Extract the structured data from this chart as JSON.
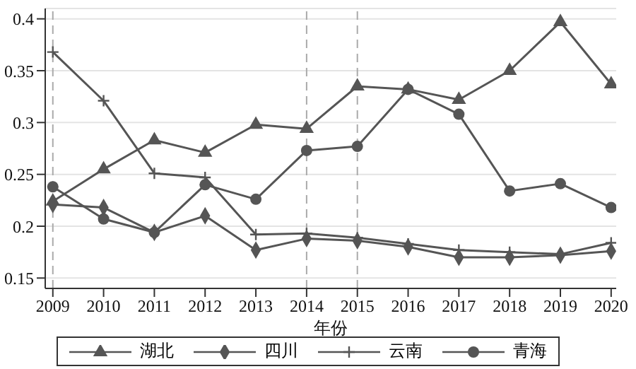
{
  "chart_data": {
    "type": "line",
    "xlabel": "年份",
    "x": [
      2009,
      2010,
      2011,
      2012,
      2013,
      2014,
      2015,
      2016,
      2017,
      2018,
      2019,
      2020
    ],
    "xlim": [
      2008.85,
      2020.1
    ],
    "xticks": [
      2009,
      2010,
      2011,
      2012,
      2013,
      2014,
      2015,
      2016,
      2017,
      2018,
      2019,
      2020
    ],
    "ylim": [
      0.14,
      0.41
    ],
    "yticks": [
      0.15,
      0.2,
      0.25,
      0.3,
      0.35,
      0.4
    ],
    "grid": "y",
    "legend": "bottom",
    "line_style": "solid",
    "ref_lines": [
      {
        "axis": "x",
        "value": 2009,
        "color": "#aaaaaa",
        "line_style": "dashed"
      },
      {
        "axis": "x",
        "value": 2014,
        "color": "#aaaaaa",
        "line_style": "dashed"
      },
      {
        "axis": "x",
        "value": 2015,
        "color": "#aaaaaa",
        "line_style": "dashed"
      }
    ],
    "series": [
      {
        "name": "湖北",
        "color": "#555555",
        "marker": "triangle",
        "values": [
          0.224,
          0.255,
          0.283,
          0.271,
          0.298,
          0.294,
          0.335,
          0.332,
          0.322,
          0.35,
          0.397,
          0.337
        ]
      },
      {
        "name": "四川",
        "color": "#555555",
        "marker": "diamond",
        "values": [
          0.221,
          0.218,
          0.194,
          0.21,
          0.177,
          0.188,
          0.186,
          0.18,
          0.17,
          0.17,
          0.172,
          0.176
        ]
      },
      {
        "name": "云南",
        "color": "#555555",
        "marker": "cross",
        "values": [
          0.368,
          0.321,
          0.251,
          0.247,
          0.192,
          0.193,
          0.189,
          0.183,
          0.177,
          0.175,
          0.173,
          0.184
        ]
      },
      {
        "name": "青海",
        "color": "#555555",
        "marker": "circle",
        "values": [
          0.238,
          0.207,
          0.194,
          0.24,
          0.226,
          0.273,
          0.277,
          0.332,
          0.308,
          0.234,
          0.241,
          0.218
        ]
      }
    ]
  }
}
